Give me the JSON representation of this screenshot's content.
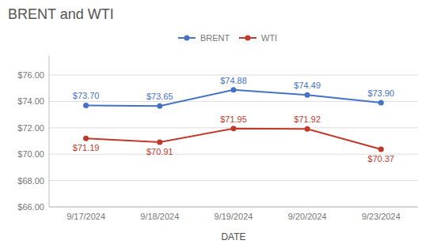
{
  "chart_data": {
    "type": "line",
    "title": "BRENT and WTI",
    "x_label": "DATE",
    "categories": [
      "9/17/2024",
      "9/18/2024",
      "9/19/2024",
      "9/20/2024",
      "9/23/2024"
    ],
    "series": [
      {
        "name": "BRENT",
        "color": "#4472C4",
        "marker": "circle",
        "line_style": "solid",
        "values": [
          73.7,
          73.65,
          74.88,
          74.49,
          73.9
        ],
        "value_labels": [
          "$73.70",
          "$73.65",
          "$74.88",
          "$74.49",
          "$73.90"
        ]
      },
      {
        "name": "WTI",
        "color": "#C0392B",
        "marker": "circle",
        "line_style": "solid",
        "values": [
          71.19,
          70.91,
          71.95,
          71.92,
          70.37
        ],
        "value_labels": [
          "$71.19",
          "$70.91",
          "$71.95",
          "$71.92",
          "$70.37"
        ]
      }
    ],
    "ylim": [
      66.0,
      77.5
    ],
    "yticks": [
      {
        "value": 66.0,
        "label": "$66.00"
      },
      {
        "value": 68.0,
        "label": "$68.00"
      },
      {
        "value": 70.0,
        "label": "$70.00"
      },
      {
        "value": 72.0,
        "label": "$72.00"
      },
      {
        "value": 74.0,
        "label": "$74.00"
      },
      {
        "value": 76.0,
        "label": "$76.00"
      }
    ],
    "grid": true,
    "legend": "top",
    "data_labels": true
  }
}
